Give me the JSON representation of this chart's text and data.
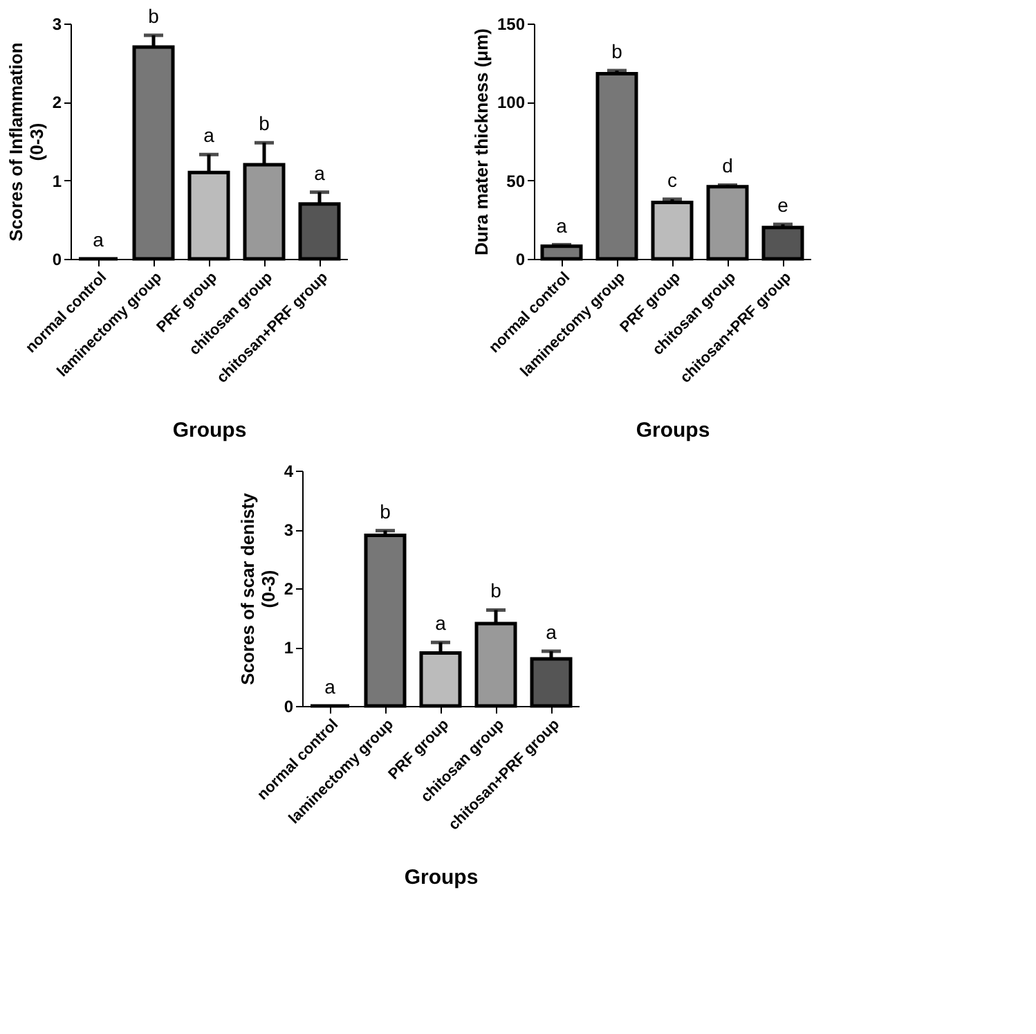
{
  "chart_data": [
    {
      "type": "bar",
      "ylabel": "Scores of Inflammation\n(0-3)",
      "xlabel": "Groups",
      "categories": [
        "normal control",
        "laminectomy group",
        "PRF group",
        "chitosan group",
        "chitosan+PRF group"
      ],
      "values": [
        0,
        2.7,
        1.1,
        1.2,
        0.7
      ],
      "colors": [
        "#000000",
        "#777777",
        "#bbbbbb",
        "#999999",
        "#555555"
      ],
      "errors": [
        null,
        [
          2.7,
          2.85
        ],
        [
          1.1,
          1.33
        ],
        [
          1.2,
          1.48
        ],
        [
          0.7,
          0.85
        ]
      ],
      "ylim": [
        0,
        3
      ],
      "yticks": [
        0,
        1,
        2,
        3
      ],
      "grid": false,
      "annotations": [
        {
          "text": "a",
          "x": "normal control",
          "y": 0
        },
        {
          "text": "b",
          "x": "laminectomy group",
          "y": 2.85
        },
        {
          "text": "a",
          "x": "PRF group",
          "y": 1.33
        },
        {
          "text": "b",
          "x": "chitosan group",
          "y": 1.48
        },
        {
          "text": "a",
          "x": "chitosan+PRF group",
          "y": 0.85
        }
      ]
    },
    {
      "type": "bar",
      "ylabel": "Dura mater thickness (μm)",
      "xlabel": "Groups",
      "categories": [
        "normal control",
        "laminectomy group",
        "PRF group",
        "chitosan group",
        "chitosan+PRF group"
      ],
      "values": [
        8,
        118,
        36,
        46,
        20
      ],
      "colors": [
        "#777777",
        "#777777",
        "#bbbbbb",
        "#999999",
        "#555555"
      ],
      "errors": [
        [
          8,
          9
        ],
        [
          118,
          120
        ],
        [
          36,
          38
        ],
        [
          46,
          47
        ],
        [
          20,
          22
        ]
      ],
      "ylim": [
        0,
        150
      ],
      "yticks": [
        0,
        50,
        100,
        150
      ],
      "grid": false,
      "annotations": [
        {
          "text": "a",
          "x": "normal control",
          "y": 9
        },
        {
          "text": "b",
          "x": "laminectomy group",
          "y": 120
        },
        {
          "text": "c",
          "x": "PRF group",
          "y": 38
        },
        {
          "text": "d",
          "x": "chitosan group",
          "y": 47
        },
        {
          "text": "e",
          "x": "chitosan+PRF group",
          "y": 22
        }
      ]
    },
    {
      "type": "bar",
      "ylabel": "Scores of scar denisty\n(0-3)",
      "xlabel": "Groups",
      "categories": [
        "normal control",
        "laminectomy group",
        "PRF group",
        "chitosan group",
        "chitosan+PRF group"
      ],
      "values": [
        0,
        2.9,
        0.9,
        1.4,
        0.8
      ],
      "colors": [
        "#000000",
        "#777777",
        "#bbbbbb",
        "#999999",
        "#555555"
      ],
      "errors": [
        null,
        [
          2.9,
          2.98
        ],
        [
          0.9,
          1.08
        ],
        [
          1.4,
          1.63
        ],
        [
          0.8,
          0.93
        ]
      ],
      "ylim": [
        0,
        4
      ],
      "yticks": [
        0,
        1,
        2,
        3,
        4
      ],
      "grid": false,
      "annotations": [
        {
          "text": "a",
          "x": "normal control",
          "y": 0
        },
        {
          "text": "b",
          "x": "laminectomy group",
          "y": 2.98
        },
        {
          "text": "a",
          "x": "PRF group",
          "y": 1.08
        },
        {
          "text": "b",
          "x": "chitosan group",
          "y": 1.63
        },
        {
          "text": "a",
          "x": "chitosan+PRF group",
          "y": 0.93
        }
      ]
    }
  ]
}
